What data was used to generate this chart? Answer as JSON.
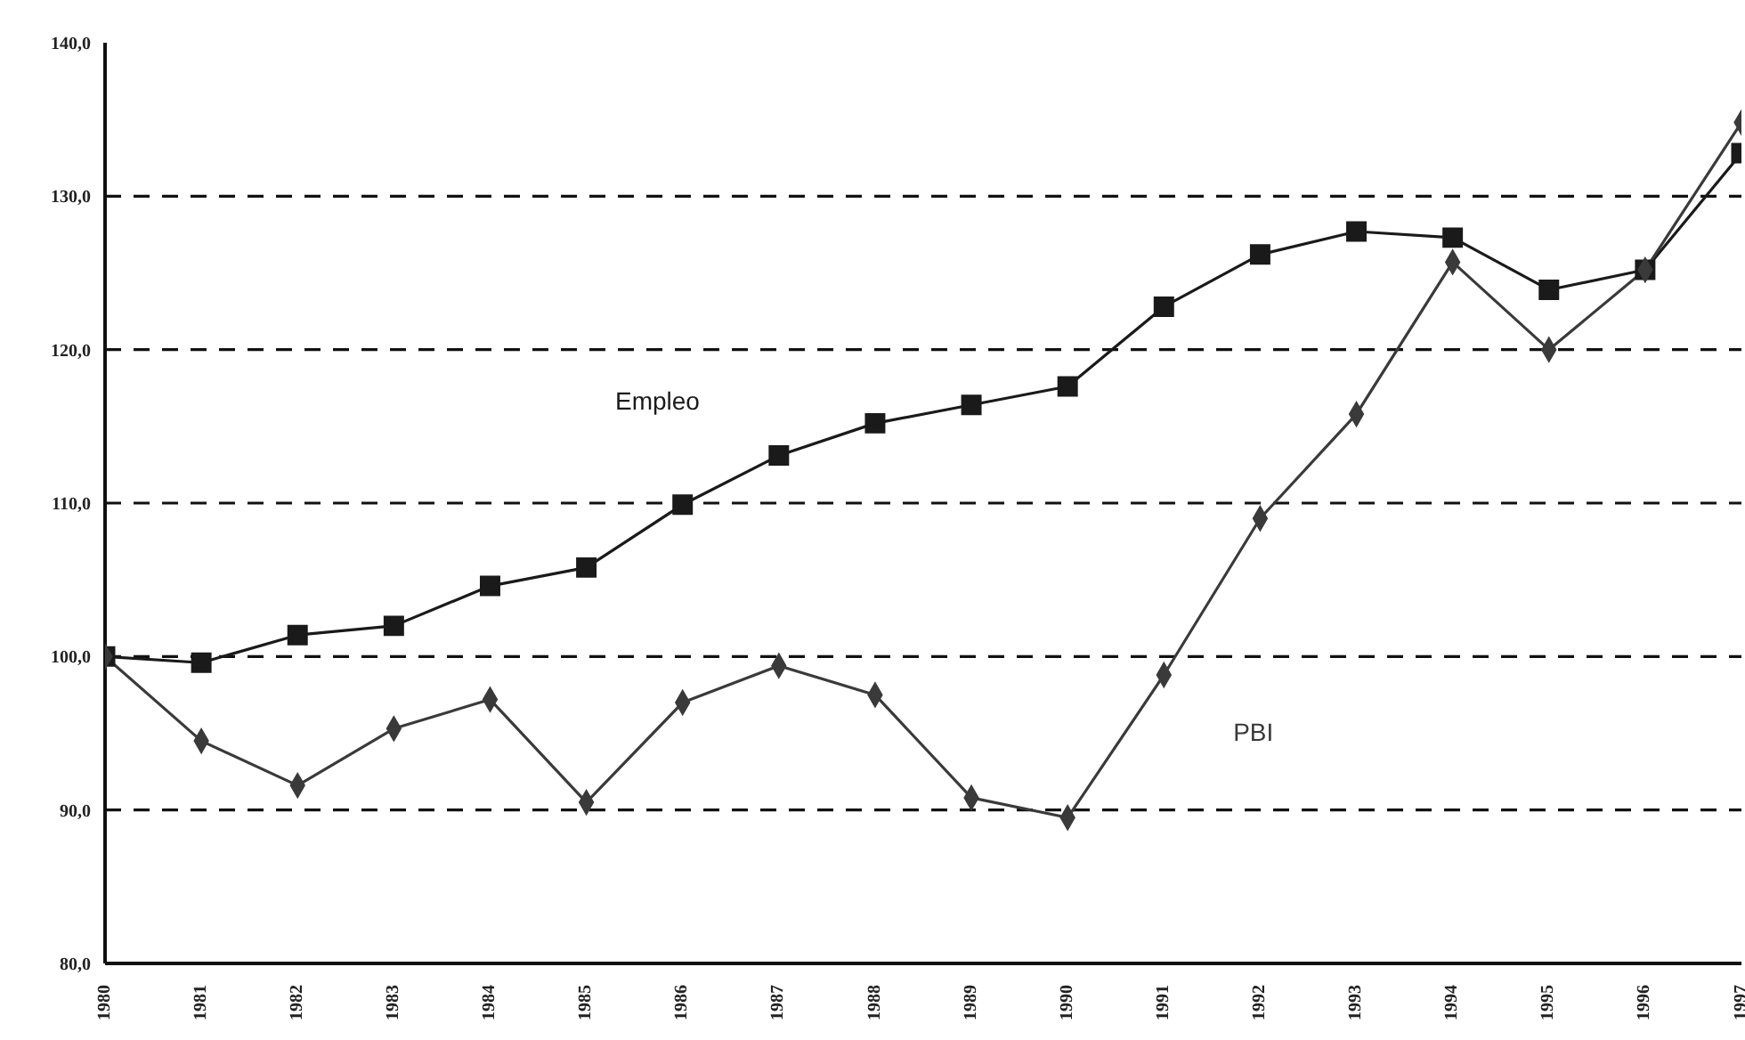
{
  "chart_data": {
    "type": "line",
    "categories": [
      "1980",
      "1981",
      "1982",
      "1983",
      "1984",
      "1985",
      "1986",
      "1987",
      "1988",
      "1989",
      "1990",
      "1991",
      "1992",
      "1993",
      "1994",
      "1995",
      "1996",
      "1997"
    ],
    "series": [
      {
        "name": "Empleo",
        "color": "#1a1a1a",
        "marker": "square",
        "values": [
          100,
          99.6,
          101.4,
          102.0,
          104.6,
          105.8,
          109.9,
          113.1,
          115.2,
          116.4,
          117.6,
          122.8,
          126.2,
          127.7,
          127.3,
          123.9,
          125.2,
          132.8
        ]
      },
      {
        "name": "PBI",
        "color": "#3a3a3a",
        "marker": "diamond",
        "values": [
          100,
          94.5,
          91.6,
          95.3,
          97.2,
          90.5,
          97.0,
          99.4,
          97.5,
          90.8,
          89.5,
          98.8,
          109.0,
          115.8,
          125.7,
          120.0,
          125.2,
          134.8
        ]
      }
    ],
    "ylim": [
      80,
      140
    ],
    "yticks": [
      {
        "value": 80,
        "label": "80,0"
      },
      {
        "value": 90,
        "label": "90,0"
      },
      {
        "value": 100,
        "label": "100,0"
      },
      {
        "value": 110,
        "label": "110,0"
      },
      {
        "value": 120,
        "label": "120,0"
      },
      {
        "value": 130,
        "label": "130,0"
      },
      {
        "value": 140,
        "label": "140,0"
      }
    ],
    "grid": "y",
    "legend": false,
    "line_style": "solid"
  }
}
